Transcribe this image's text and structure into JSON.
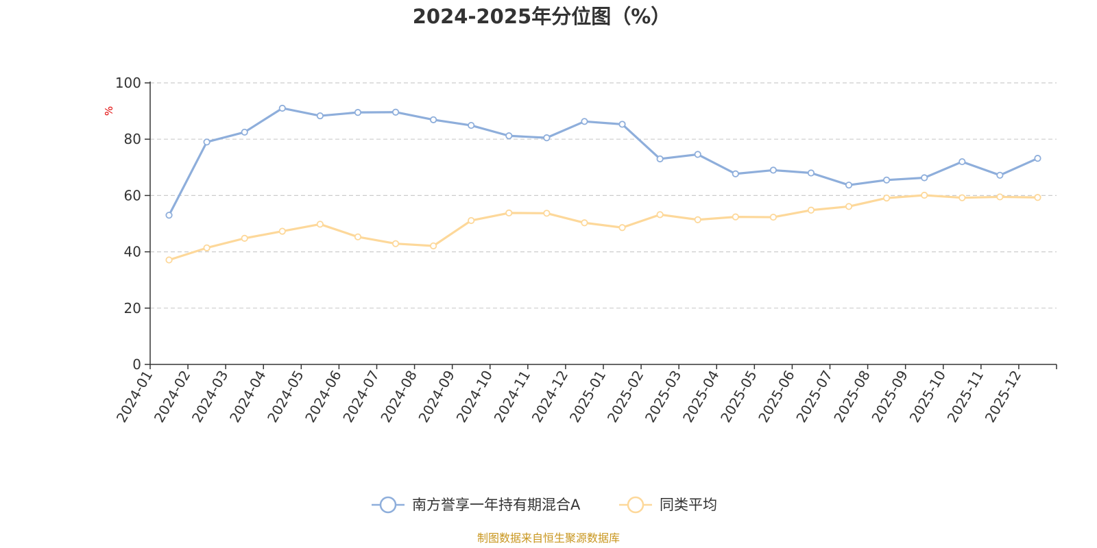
{
  "chart_data": {
    "type": "line",
    "title": "2024-2025年分位图（%）",
    "ylabel": "%",
    "xlabel": "",
    "ylim": [
      0,
      100
    ],
    "yticks": [
      0,
      20,
      40,
      60,
      80,
      100
    ],
    "grid": true,
    "legend_position": "bottom",
    "categories": [
      "2024-01",
      "2024-02",
      "2024-03",
      "2024-04",
      "2024-05",
      "2024-06",
      "2024-07",
      "2024-08",
      "2024-09",
      "2024-10",
      "2024-11",
      "2024-12",
      "2025-01",
      "2025-02",
      "2025-03",
      "2025-04",
      "2025-05",
      "2025-06",
      "2025-07",
      "2025-08",
      "2025-09",
      "2025-10",
      "2025-11",
      "2025-12"
    ],
    "series": [
      {
        "name": "南方誉享一年持有期混合A",
        "color": "#8eaedb",
        "values": [
          53,
          79,
          82.5,
          91,
          88.3,
          89.5,
          89.6,
          86.9,
          84.9,
          81.2,
          80.5,
          86.3,
          85.3,
          73,
          74.6,
          67.7,
          69,
          68,
          63.7,
          65.5,
          66.3,
          72,
          67.2,
          73.2
        ]
      },
      {
        "name": "同类平均",
        "color": "#fdd89a",
        "values": [
          37.1,
          41.4,
          44.8,
          47.3,
          49.8,
          45.3,
          42.9,
          42.1,
          51.1,
          53.8,
          53.7,
          50.3,
          48.6,
          53.2,
          51.4,
          52.4,
          52.3,
          54.8,
          56.1,
          59.1,
          60.1,
          59.2,
          59.5,
          59.3
        ]
      }
    ],
    "source": "制图数据来自恒生聚源数据库"
  }
}
